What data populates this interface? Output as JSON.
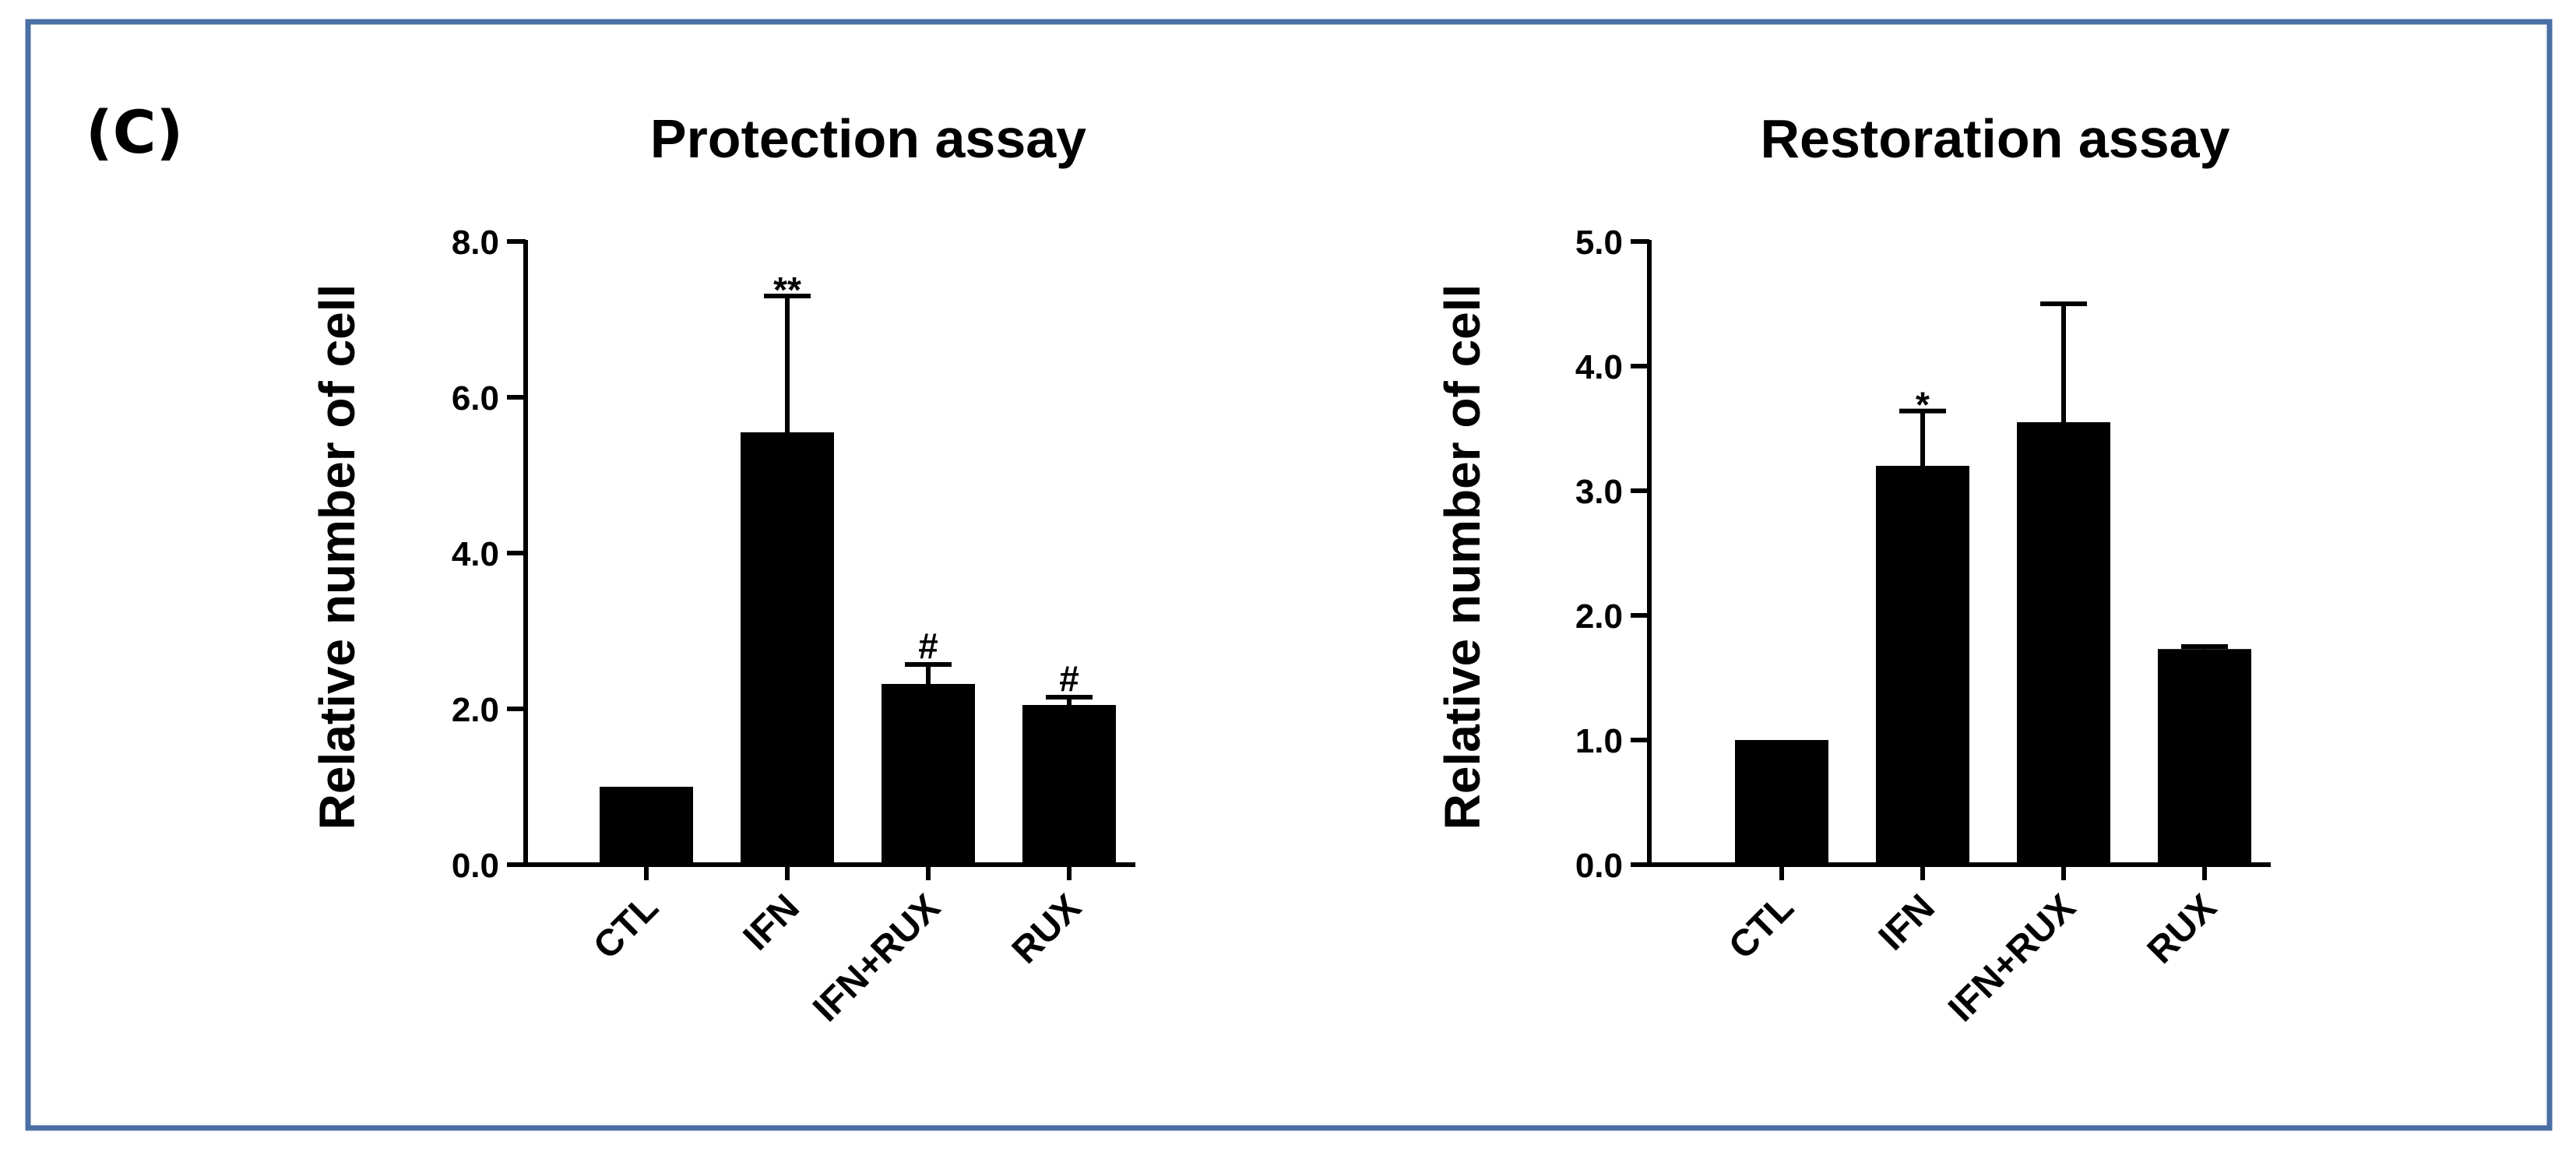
{
  "panel_label": "(C)",
  "frame_color": "#4a6fa5",
  "bar_color": "#000000",
  "chart_data": [
    {
      "type": "bar",
      "title": "Protection assay",
      "ylabel": "Relative number of cell",
      "xlabel": "",
      "categories": [
        "CTL",
        "IFN",
        "IFN+RUX",
        "RUX"
      ],
      "values": [
        1.0,
        5.55,
        2.32,
        2.05
      ],
      "errors": [
        0.0,
        1.75,
        0.25,
        0.1
      ],
      "significance": [
        "",
        "**",
        "#",
        "#"
      ],
      "ylim": [
        0,
        8
      ],
      "yticks": [
        0,
        2,
        4,
        6,
        8
      ],
      "ytick_labels": [
        "0.0",
        "2.0",
        "4.0",
        "6.0",
        "8.0"
      ],
      "grid": false,
      "legend": "none"
    },
    {
      "type": "bar",
      "title": "Restoration assay",
      "ylabel": "Relative number of cell",
      "xlabel": "",
      "categories": [
        "CTL",
        "IFN",
        "IFN+RUX",
        "RUX"
      ],
      "values": [
        1.0,
        3.2,
        3.55,
        1.73
      ],
      "errors": [
        0.0,
        0.44,
        0.95,
        0.02
      ],
      "significance": [
        "",
        "*",
        "",
        ""
      ],
      "ylim": [
        0,
        5
      ],
      "yticks": [
        0,
        1,
        2,
        3,
        4,
        5
      ],
      "ytick_labels": [
        "0.0",
        "1.0",
        "2.0",
        "3.0",
        "4.0",
        "5.0"
      ],
      "grid": false,
      "legend": "none"
    }
  ]
}
